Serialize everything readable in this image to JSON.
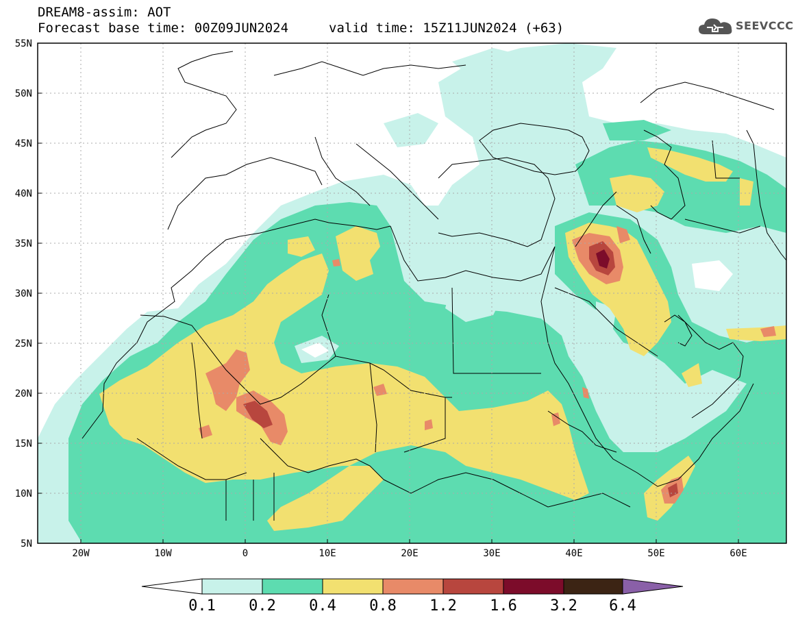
{
  "header": {
    "line1": "DREAM8-assim: AOT",
    "line2": "Forecast base time: 00Z09JUN2024",
    "valid": "valid time: 15Z11JUN2024 (+63)"
  },
  "logo": {
    "text": "SEEVCCC",
    "icon": "cloud-icon"
  },
  "map": {
    "lat_labels": [
      "55N",
      "50N",
      "45N",
      "40N",
      "35N",
      "30N",
      "25N",
      "20N",
      "15N",
      "10N",
      "5N"
    ],
    "lon_labels": [
      "20W",
      "10W",
      "0",
      "10E",
      "20E",
      "30E",
      "40E",
      "50E",
      "60E"
    ],
    "lon_range": [
      -25,
      65
    ],
    "lat_range": [
      5,
      55
    ]
  },
  "colorbar": {
    "labels": [
      "0.1",
      "0.2",
      "0.4",
      "0.8",
      "1.2",
      "1.6",
      "3.2",
      "6.4"
    ],
    "colors": [
      "#ffffff",
      "#c8f2ea",
      "#5ddcb0",
      "#f2e070",
      "#e88a68",
      "#b8463e",
      "#7c0c2a",
      "#3c2414",
      "#8a60a8"
    ]
  },
  "colors": {
    "level1": "#c8f2ea",
    "level2": "#5ddcb0",
    "level3": "#f2e070",
    "level4": "#e88a68",
    "level5": "#b8463e",
    "level6": "#7c0c2a"
  }
}
